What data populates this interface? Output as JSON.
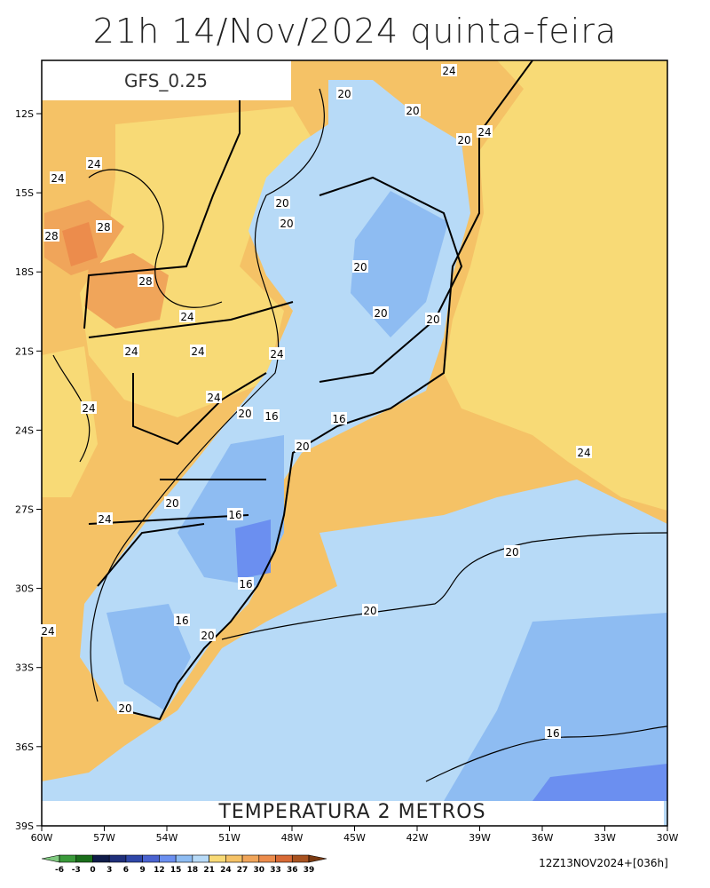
{
  "header": {
    "title": "21h 14/Nov/2024 quinta-feira"
  },
  "model_label": "GFS_0.25",
  "map_title": "TEMPERATURA 2 METROS",
  "run_label": "12Z13NOV2024+[036h]",
  "axes": {
    "x_ticks": [
      "60W",
      "57W",
      "54W",
      "51W",
      "48W",
      "45W",
      "42W",
      "39W",
      "36W",
      "33W",
      "30W"
    ],
    "y_ticks": [
      "12S",
      "15S",
      "18S",
      "21S",
      "24S",
      "27S",
      "30S",
      "33S",
      "36S",
      "39S"
    ]
  },
  "contour_labels": [
    "24",
    "20",
    "20",
    "20",
    "24",
    "24",
    "24",
    "20",
    "20",
    "28",
    "28",
    "20",
    "28",
    "20",
    "20",
    "24",
    "24",
    "24",
    "24",
    "24",
    "24",
    "20",
    "16",
    "16",
    "20",
    "24",
    "20",
    "16",
    "24",
    "20",
    "16",
    "20",
    "16",
    "24",
    "20",
    "20",
    "16"
  ],
  "colorbar": {
    "labels": [
      "-6",
      "-3",
      "0",
      "3",
      "6",
      "9",
      "12",
      "15",
      "18",
      "21",
      "24",
      "27",
      "30",
      "33",
      "36",
      "39"
    ]
  }
}
